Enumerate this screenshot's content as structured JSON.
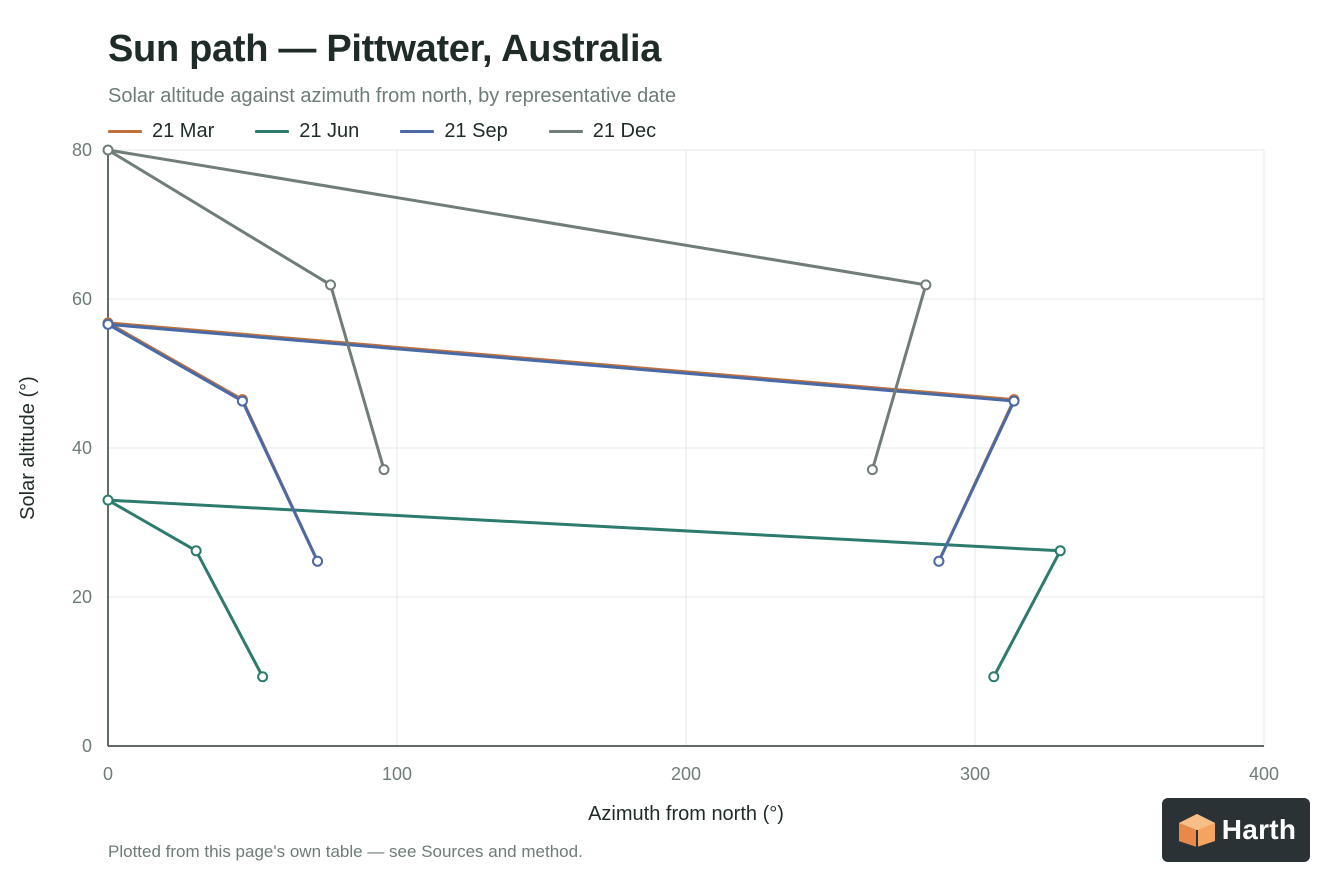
{
  "header": {
    "title": "Sun path — Pittwater, Australia",
    "subtitle": "Solar altitude against azimuth from north, by representative date"
  },
  "footnote": "Plotted from this page's own table — see Sources and method.",
  "brand": {
    "name": "Harth",
    "icon": "house-cube-icon",
    "color": "#2b3236",
    "accent": "#f4a460"
  },
  "chart_data": {
    "type": "line",
    "title": "Sun path — Pittwater, Australia",
    "subtitle": "Solar altitude against azimuth from north, by representative date",
    "xlabel": "Azimuth from north (°)",
    "ylabel": "Solar altitude (°)",
    "xlim": [
      0,
      400
    ],
    "ylim": [
      0,
      80
    ],
    "xticks": [
      0,
      100,
      200,
      300,
      400
    ],
    "yticks": [
      0,
      20,
      40,
      60,
      80
    ],
    "grid": true,
    "legend": "top-left",
    "series": [
      {
        "name": "21 Mar",
        "color": "#c0703b",
        "x": [
          72.5,
          46.5,
          0,
          313.5,
          287.5
        ],
        "y": [
          24.8,
          46.5,
          56.8,
          46.5,
          24.8
        ]
      },
      {
        "name": "21 Jun",
        "color": "#2d7a6e",
        "x": [
          53.5,
          30.5,
          0,
          329.5,
          306.5
        ],
        "y": [
          9.3,
          26.2,
          33,
          26.2,
          9.3
        ]
      },
      {
        "name": "21 Sep",
        "color": "#4a6aa5",
        "x": [
          72.5,
          46.5,
          0,
          313.5,
          287.5
        ],
        "y": [
          24.8,
          46.3,
          56.6,
          46.3,
          24.8
        ]
      },
      {
        "name": "21 Dec",
        "color": "#707d78",
        "x": [
          95.5,
          77,
          0,
          283,
          264.5
        ],
        "y": [
          37.1,
          61.9,
          80,
          61.9,
          37.1
        ]
      }
    ]
  }
}
